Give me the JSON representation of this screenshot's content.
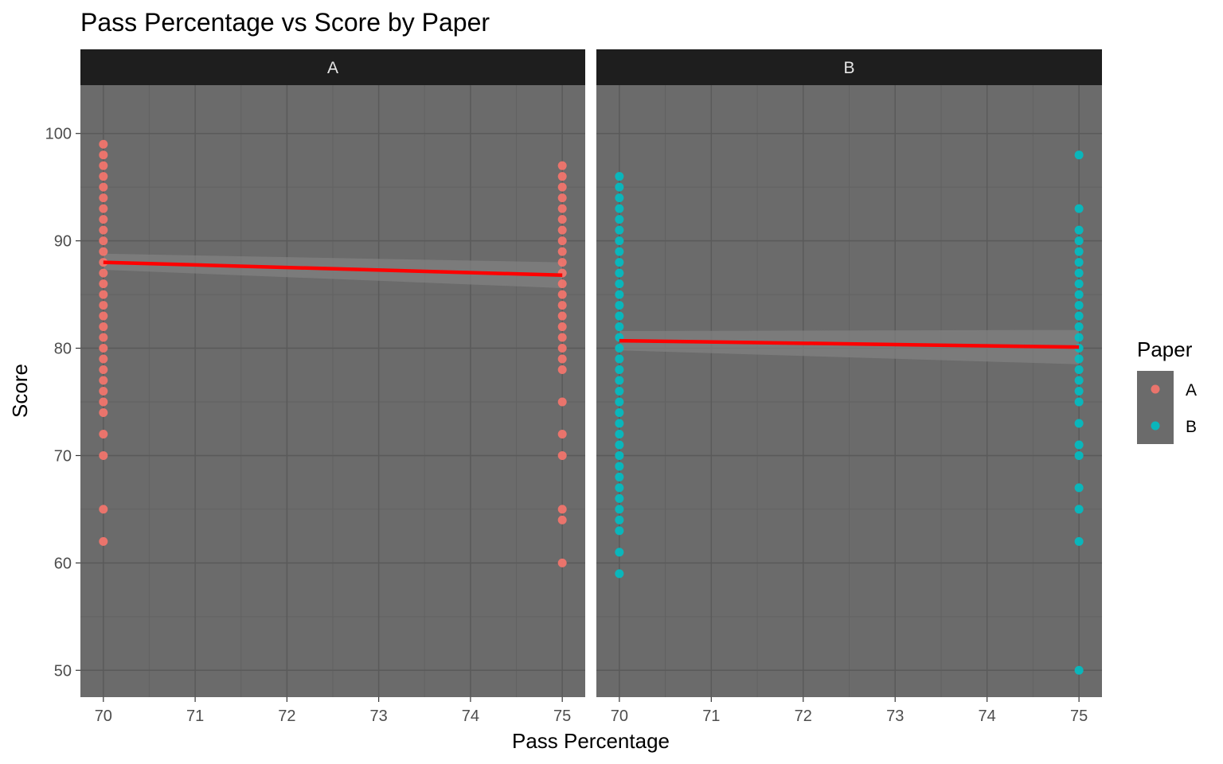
{
  "chart_data": {
    "type": "scatter",
    "title": "Pass Percentage vs Score by Paper",
    "xlabel": "Pass Percentage",
    "ylabel": "Score",
    "xlim": [
      69.75,
      75.25
    ],
    "ylim": [
      47.5,
      104.5
    ],
    "x_ticks": [
      70,
      71,
      72,
      73,
      74,
      75
    ],
    "y_ticks": [
      50,
      60,
      70,
      80,
      90,
      100
    ],
    "grid": true,
    "legend": {
      "title": "Paper",
      "position": "right",
      "entries": [
        {
          "label": "A",
          "color": "#f8766d"
        },
        {
          "label": "B",
          "color": "#00bfc4"
        }
      ]
    },
    "colors": {
      "panel_background": "#6b6b6b",
      "grid_major": "#5a5a5a",
      "grid_minor": "#626262",
      "strip_background": "#1e1e1e",
      "trend_line": "#ff0000",
      "confidence_band": "#808080"
    },
    "facets": [
      {
        "label": "A",
        "color": "#f8766d",
        "series": [
          {
            "x": 70,
            "y": [
              99,
              98,
              97,
              96,
              95,
              94,
              93,
              92,
              91,
              90,
              89,
              88,
              87,
              86,
              85,
              84,
              83,
              82,
              81,
              80,
              79,
              78,
              77,
              76,
              75,
              74,
              72,
              70,
              65,
              62
            ]
          },
          {
            "x": 75,
            "y": [
              97,
              96,
              95,
              94,
              93,
              92,
              91,
              90,
              89,
              88,
              87,
              86,
              85,
              84,
              83,
              82,
              81,
              80,
              79,
              78,
              75,
              72,
              70,
              65,
              64,
              60
            ]
          }
        ],
        "trend": {
          "x": [
            70,
            75
          ],
          "y": [
            88.0,
            86.8
          ]
        },
        "band": {
          "x": [
            70,
            75
          ],
          "lower": [
            87.3,
            85.6
          ],
          "upper": [
            88.8,
            88.0
          ]
        }
      },
      {
        "label": "B",
        "color": "#00bfc4",
        "series": [
          {
            "x": 70,
            "y": [
              96,
              95,
              94,
              93,
              92,
              91,
              90,
              89,
              88,
              87,
              86,
              85,
              84,
              83,
              82,
              81,
              80,
              79,
              78,
              77,
              76,
              75,
              74,
              73,
              72,
              71,
              70,
              69,
              68,
              67,
              66,
              65,
              64,
              63,
              61,
              59
            ]
          },
          {
            "x": 75,
            "y": [
              98,
              93,
              91,
              90,
              89,
              88,
              87,
              86,
              85,
              84,
              83,
              82,
              81,
              80,
              79,
              78,
              77,
              76,
              75,
              73,
              71,
              70,
              67,
              65,
              62,
              50
            ]
          }
        ],
        "trend": {
          "x": [
            70,
            75
          ],
          "y": [
            80.7,
            80.1
          ]
        },
        "band": {
          "x": [
            70,
            75
          ],
          "lower": [
            79.8,
            78.5
          ],
          "upper": [
            81.6,
            81.7
          ]
        }
      }
    ]
  }
}
